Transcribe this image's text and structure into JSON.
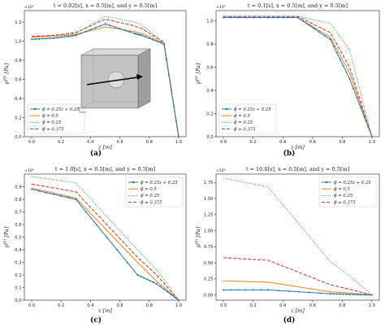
{
  "figure": {
    "colors": {
      "s1": "#1f77b4",
      "s2": "#ff7f0e",
      "s3": "#2ca02c",
      "s4": "#d62728"
    },
    "inset": {
      "icon": "cube-with-sphere-and-arrow-icon"
    }
  },
  "chart_data": [
    {
      "type": "line",
      "panel_label": "(a)",
      "title": "t = 0.02[s], x = 0.5[m], and y = 0.5[m]",
      "xlabel": "z [m]",
      "ylabel": "p^(0) [Pa]",
      "y_offset_text": "×10⁴",
      "xlim": [
        -0.05,
        1.05
      ],
      "ylim": [
        0,
        1.32
      ],
      "xticks": [
        0.0,
        0.2,
        0.4,
        0.6,
        0.8,
        1.0
      ],
      "xtick_labels": [
        "0.0",
        "0.2",
        "0.4",
        "0.6",
        "0.8",
        "1.0"
      ],
      "yticks": [
        0.0,
        0.2,
        0.4,
        0.6,
        0.8,
        1.0,
        1.2
      ],
      "ytick_labels": [
        "0.0",
        "0.2",
        "0.4",
        "0.6",
        "0.8",
        "1.0",
        "1.2"
      ],
      "legend_position": "lower-left",
      "series": [
        {
          "name": "ϕ = 0.25z + 0.25",
          "style": "solid-marker",
          "x": [
            0,
            0.15,
            0.3,
            0.5,
            0.7,
            0.75,
            0.9,
            1.0
          ],
          "y": [
            1.02,
            1.03,
            1.06,
            1.18,
            1.08,
            1.06,
            0.97,
            0.0
          ]
        },
        {
          "name": "ϕ = 0.5",
          "style": "solid",
          "x": [
            0,
            0.15,
            0.3,
            0.5,
            0.7,
            0.75,
            0.9,
            1.0
          ],
          "y": [
            1.04,
            1.05,
            1.07,
            1.15,
            1.1,
            1.08,
            0.98,
            0.0
          ]
        },
        {
          "name": "ϕ = 0.25",
          "style": "dotted",
          "x": [
            0,
            0.15,
            0.3,
            0.5,
            0.7,
            0.75,
            0.9,
            1.0
          ],
          "y": [
            1.05,
            1.06,
            1.08,
            1.26,
            1.2,
            1.17,
            0.98,
            0.0
          ]
        },
        {
          "name": "ϕ = 0.375",
          "style": "dashed",
          "x": [
            0,
            0.15,
            0.3,
            0.5,
            0.7,
            0.75,
            0.9,
            1.0
          ],
          "y": [
            1.05,
            1.06,
            1.09,
            1.23,
            1.16,
            1.13,
            0.99,
            0.0
          ]
        }
      ]
    },
    {
      "type": "line",
      "panel_label": "(b)",
      "title": "t = 0.1[s], x = 0.5[m], and y = 0.5[m]",
      "xlabel": "z [m]",
      "ylabel": "p^(0) [Pa]",
      "y_offset_text": "×10⁴",
      "xlim": [
        -0.05,
        1.05
      ],
      "ylim": [
        0,
        1.09
      ],
      "xticks": [
        0.0,
        0.2,
        0.4,
        0.6,
        0.8,
        1.0
      ],
      "xtick_labels": [
        "0.0",
        "0.2",
        "0.4",
        "0.6",
        "0.8",
        "1.0"
      ],
      "yticks": [
        0.0,
        0.2,
        0.4,
        0.6,
        0.8,
        1.0
      ],
      "ytick_labels": [
        "0.0",
        "0.2",
        "0.4",
        "0.6",
        "0.8",
        "1.0"
      ],
      "legend_position": "lower-left",
      "series": [
        {
          "name": "ϕ = 0.25z + 0.25",
          "style": "solid-marker",
          "x": [
            0,
            0.3,
            0.5,
            0.72,
            0.85,
            1.0
          ],
          "y": [
            1.03,
            1.03,
            1.03,
            0.84,
            0.5,
            0.0
          ]
        },
        {
          "name": "ϕ = 0.5",
          "style": "solid",
          "x": [
            0,
            0.3,
            0.5,
            0.72,
            0.85,
            1.0
          ],
          "y": [
            1.03,
            1.03,
            1.03,
            0.86,
            0.55,
            0.0
          ]
        },
        {
          "name": "ϕ = 0.25",
          "style": "dotted",
          "x": [
            0,
            0.3,
            0.5,
            0.72,
            0.85,
            1.0
          ],
          "y": [
            1.04,
            1.04,
            1.04,
            0.98,
            0.75,
            0.0
          ]
        },
        {
          "name": "ϕ = 0.375",
          "style": "dashed",
          "x": [
            0,
            0.3,
            0.5,
            0.72,
            0.85,
            1.0
          ],
          "y": [
            1.04,
            1.04,
            1.04,
            0.9,
            0.6,
            0.0
          ]
        }
      ]
    },
    {
      "type": "line",
      "panel_label": "(c)",
      "title": "t = 1.0[s], x = 0.5[m], and y = 0.5[m]",
      "xlabel": "z [m]",
      "ylabel": "p^(0) [Pa]",
      "y_offset_text": "×10⁴",
      "xlim": [
        -0.05,
        1.05
      ],
      "ylim": [
        0,
        1.0
      ],
      "xticks": [
        0.0,
        0.2,
        0.4,
        0.6,
        0.8,
        1.0
      ],
      "xtick_labels": [
        "0.0",
        "0.2",
        "0.4",
        "0.6",
        "0.8",
        "1.0"
      ],
      "yticks": [
        0.0,
        0.1,
        0.2,
        0.3,
        0.4,
        0.5,
        0.6,
        0.7,
        0.8,
        0.9
      ],
      "ytick_labels": [
        "0.0",
        "0.1",
        "0.2",
        "0.3",
        "0.4",
        "0.5",
        "0.6",
        "0.7",
        "0.8",
        "0.9"
      ],
      "legend_position": "upper-right",
      "series": [
        {
          "name": "ϕ = 0.25z + 0.25",
          "style": "solid-marker",
          "x": [
            0,
            0.3,
            0.72,
            0.85,
            1.0
          ],
          "y": [
            0.88,
            0.8,
            0.2,
            0.13,
            0.0
          ]
        },
        {
          "name": "ϕ = 0.5",
          "style": "solid",
          "x": [
            0,
            0.3,
            0.72,
            0.85,
            1.0
          ],
          "y": [
            0.89,
            0.81,
            0.3,
            0.15,
            0.0
          ]
        },
        {
          "name": "ϕ = 0.25",
          "style": "dotted",
          "x": [
            0,
            0.3,
            0.72,
            0.85,
            1.0
          ],
          "y": [
            0.98,
            0.93,
            0.4,
            0.24,
            0.0
          ]
        },
        {
          "name": "ϕ = 0.375",
          "style": "dashed",
          "x": [
            0,
            0.3,
            0.72,
            0.85,
            1.0
          ],
          "y": [
            0.92,
            0.86,
            0.34,
            0.2,
            0.0
          ]
        }
      ]
    },
    {
      "type": "line",
      "panel_label": "(d)",
      "title": "t = 10.0[s], x = 0.5[m], and y = 0.5[m]",
      "xlabel": "z [m]",
      "ylabel": "p^(0) [Pa]",
      "y_offset_text": "×10⁴",
      "xlim": [
        -0.05,
        1.05
      ],
      "ylim": [
        -0.08,
        1.88
      ],
      "xticks": [
        0.0,
        0.2,
        0.4,
        0.6,
        0.8,
        1.0
      ],
      "xtick_labels": [
        "0.0",
        "0.2",
        "0.4",
        "0.6",
        "0.8",
        "1.0"
      ],
      "yticks": [
        0.0,
        0.25,
        0.5,
        0.75,
        1.0,
        1.25,
        1.5,
        1.75
      ],
      "ytick_labels": [
        "0.00",
        "0.25",
        "0.50",
        "0.75",
        "1.00",
        "1.25",
        "1.50",
        "1.75"
      ],
      "legend_position": "upper-right",
      "series": [
        {
          "name": "ϕ = 0.25z + 0.25",
          "style": "solid-marker",
          "x": [
            0,
            0.3,
            0.72,
            0.85,
            1.0
          ],
          "y": [
            0.08,
            0.08,
            0.02,
            0.01,
            0.0
          ]
        },
        {
          "name": "ϕ = 0.5",
          "style": "solid",
          "x": [
            0,
            0.3,
            0.72,
            0.85,
            1.0
          ],
          "y": [
            0.22,
            0.2,
            0.05,
            0.03,
            0.0
          ]
        },
        {
          "name": "ϕ = 0.25",
          "style": "dotted",
          "x": [
            0,
            0.3,
            0.72,
            0.85,
            1.0
          ],
          "y": [
            1.82,
            1.68,
            0.52,
            0.3,
            0.0
          ]
        },
        {
          "name": "ϕ = 0.375",
          "style": "dashed",
          "x": [
            0,
            0.3,
            0.72,
            0.85,
            1.0
          ],
          "y": [
            0.58,
            0.54,
            0.16,
            0.09,
            0.0
          ]
        }
      ]
    }
  ]
}
